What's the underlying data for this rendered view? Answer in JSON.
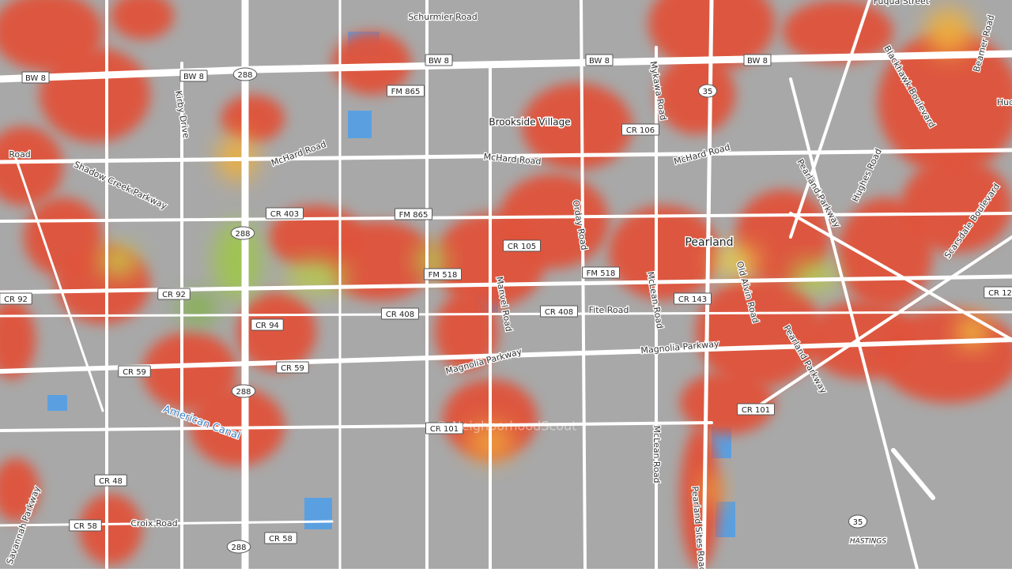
{
  "road_labels": [
    "Schurmier Road",
    "Fuqua Street",
    "Mykawa Road",
    "Kirby Drive",
    "Blackhawk Boulevard",
    "Beamer Road",
    "McHard Road",
    "McHard Road",
    "McHard Road",
    "Shadow Creek Parkway",
    "Pearland Parkway",
    "Hughes Road",
    "Scarsdale Boulevard",
    "Orday Road",
    "Manvel Road",
    "Old Alvin Road",
    "McLean Road",
    "Fite Road",
    "Magnolia Parkway",
    "Magnolia Parkway",
    "Pearland Parkway",
    "American Canal",
    "McLean Road",
    "Croix Road",
    "Pearland Sites Road",
    "Savannah Parkway",
    "Road",
    "Hud"
  ],
  "places": [
    "Brookside Village",
    "Pearland",
    "HASTINGS"
  ],
  "shields": [
    "BW 8",
    "BW 8",
    "BW 8",
    "BW 8",
    "BW 8",
    "288",
    "FM 865",
    "35",
    "CR 106",
    "CR 403",
    "FM 865",
    "288",
    "CR 105",
    "FM 518",
    "FM 518",
    "CR 92",
    "CR 92",
    "CR 143",
    "CR 408",
    "CR 408",
    "CR 94",
    "CR 59",
    "CR 59",
    "288",
    "CR 101",
    "CR 101",
    "CR 48",
    "CR 58",
    "CR 58",
    "288",
    "35",
    "CR 12"
  ],
  "watermark": "© NeighborhoodScout"
}
